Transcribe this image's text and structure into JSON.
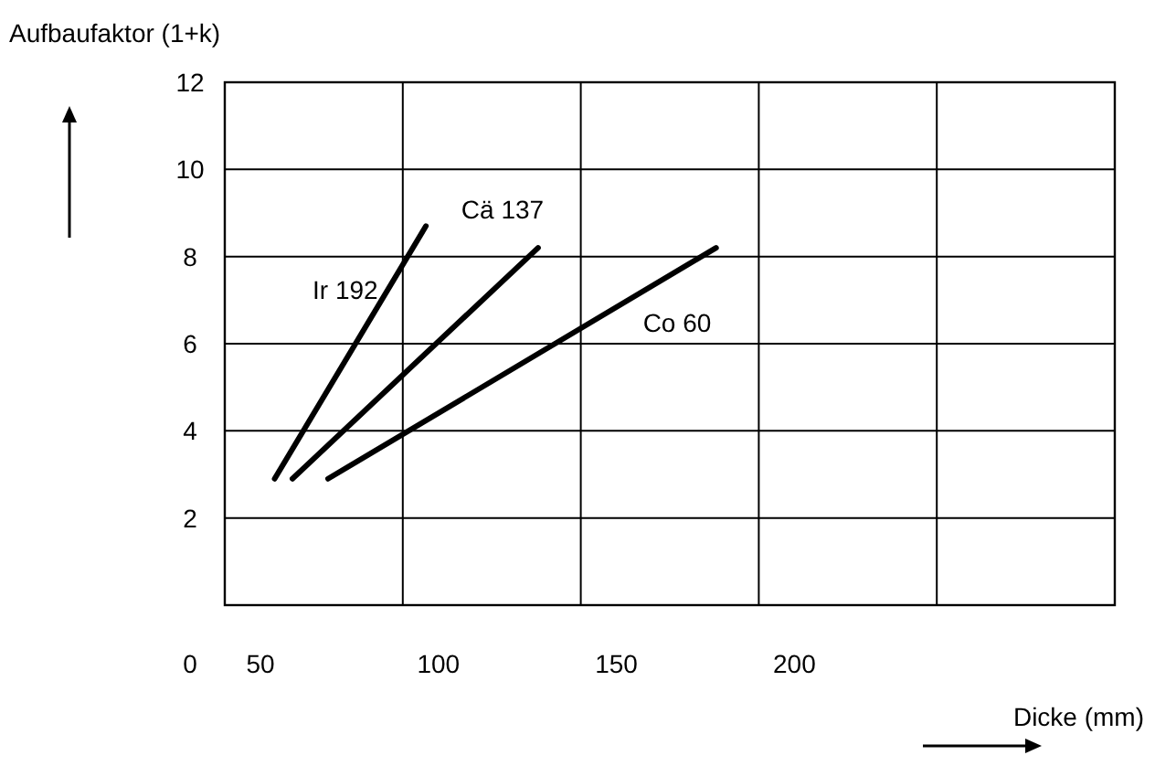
{
  "chart_data": {
    "type": "line",
    "xlabel": "Dicke (mm)",
    "ylabel": "Aufbaufaktor (1+k)",
    "xlim": [
      40,
      290
    ],
    "xticks": [
      {
        "value": 40,
        "label": null
      },
      {
        "value": 50,
        "label": "50"
      },
      {
        "value": 90,
        "label": null
      },
      {
        "value": 100,
        "label": "100"
      },
      {
        "value": 140,
        "label": null
      },
      {
        "value": 150,
        "label": "150"
      },
      {
        "value": 190,
        "label": null
      },
      {
        "value": 200,
        "label": "200"
      },
      {
        "value": 240,
        "label": null
      },
      {
        "value": 290,
        "label": null
      }
    ],
    "ylim": [
      0,
      12
    ],
    "yticks": [
      2,
      4,
      6,
      8,
      10,
      12
    ],
    "grid": true,
    "annotations": [
      "0"
    ],
    "series": [
      {
        "name": "Ir 192",
        "color": "#000000",
        "x": [
          54,
          96.5
        ],
        "values": [
          2.9,
          8.7
        ]
      },
      {
        "name": "Cä 137",
        "color": "#000000",
        "x": [
          59,
          128
        ],
        "values": [
          2.9,
          8.2
        ]
      },
      {
        "name": "Co 60",
        "color": "#000000",
        "x": [
          69,
          178
        ],
        "values": [
          2.9,
          8.2
        ]
      }
    ]
  }
}
